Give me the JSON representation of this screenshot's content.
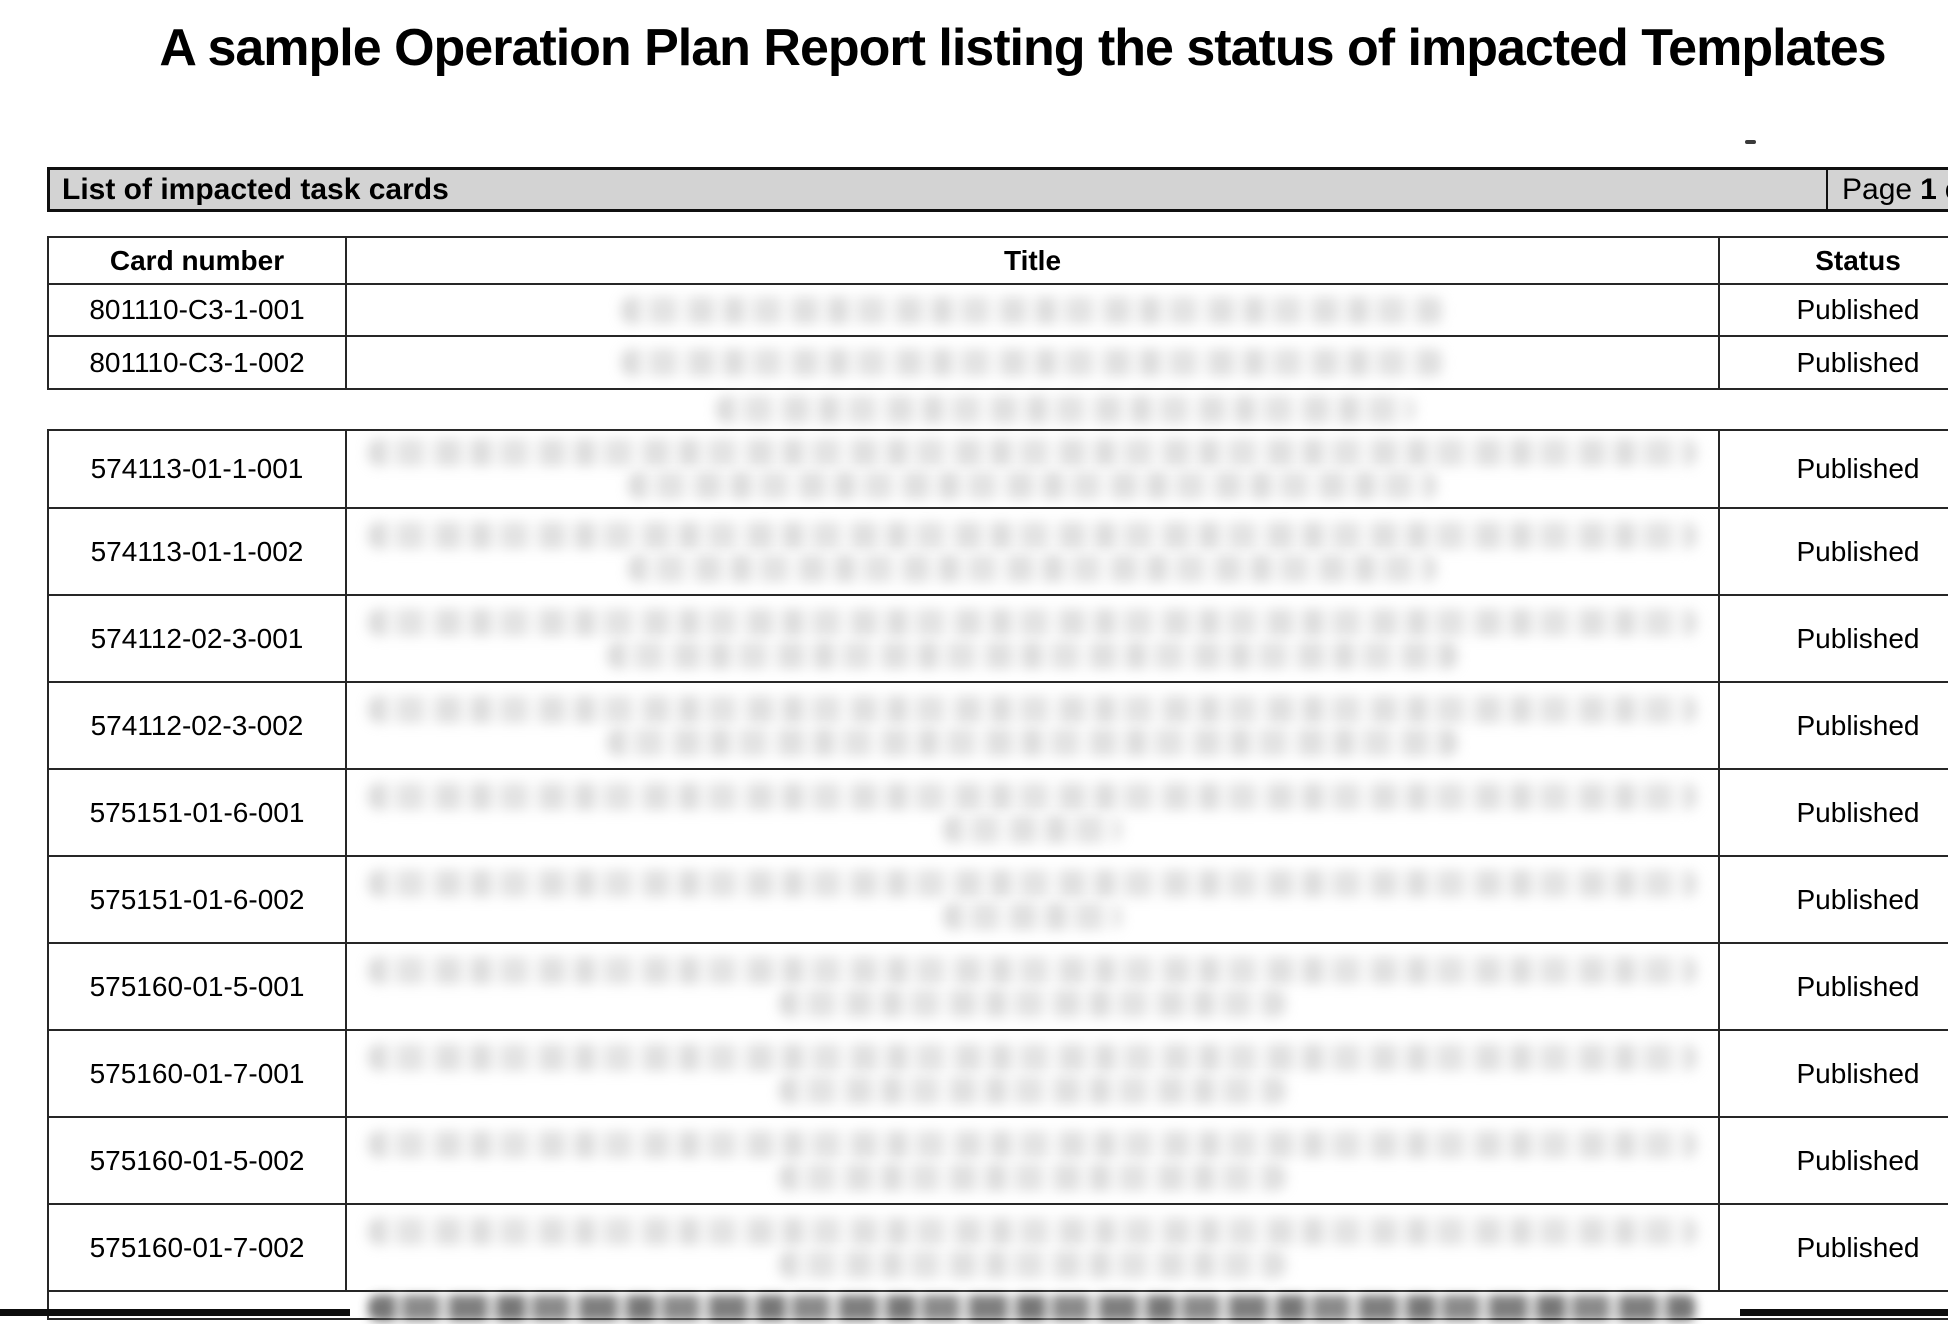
{
  "report": {
    "title": "A sample Operation Plan Report listing the status of impacted Templates"
  },
  "section_header": {
    "title": "List of impacted task cards",
    "page_label": "Page",
    "page_number": "1",
    "page_suffix": "o"
  },
  "table": {
    "columns": [
      "Card number",
      "Title",
      "Status"
    ],
    "separator_blur_width_pct": 51,
    "sections": [
      {
        "rows": [
          {
            "card_number": "801110-C3-1-001",
            "status": "Published",
            "title_blur_pct": [
              60
            ]
          },
          {
            "card_number": "801110-C3-1-002",
            "status": "Published",
            "title_blur_pct": [
              60
            ]
          }
        ]
      },
      {
        "rows": [
          {
            "card_number": "574113-01-1-001",
            "status": "Published",
            "title_blur_pct": [
              97,
              59
            ]
          },
          {
            "card_number": "574113-01-1-002",
            "status": "Published",
            "title_blur_pct": [
              97,
              59
            ]
          },
          {
            "card_number": "574112-02-3-001",
            "status": "Published",
            "title_blur_pct": [
              97,
              62
            ]
          },
          {
            "card_number": "574112-02-3-002",
            "status": "Published",
            "title_blur_pct": [
              97,
              62
            ]
          },
          {
            "card_number": "575151-01-6-001",
            "status": "Published",
            "title_blur_pct": [
              97,
              13
            ]
          },
          {
            "card_number": "575151-01-6-002",
            "status": "Published",
            "title_blur_pct": [
              97,
              13
            ]
          },
          {
            "card_number": "575160-01-5-001",
            "status": "Published",
            "title_blur_pct": [
              97,
              37
            ]
          },
          {
            "card_number": "575160-01-7-001",
            "status": "Published",
            "title_blur_pct": [
              97,
              37
            ]
          },
          {
            "card_number": "575160-01-5-002",
            "status": "Published",
            "title_blur_pct": [
              97,
              37
            ]
          },
          {
            "card_number": "575160-01-7-002",
            "status": "Published",
            "title_blur_pct": [
              97,
              37
            ]
          },
          {
            "card_number": "",
            "status": "",
            "title_blur_pct": [
              97
            ],
            "partial": true,
            "dark": true
          }
        ]
      }
    ]
  }
}
